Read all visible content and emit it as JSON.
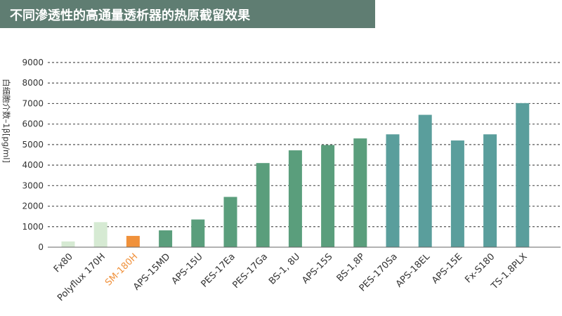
{
  "title": "不同滲透性的高通量透析器的热原截留效果",
  "chart_data": {
    "type": "bar",
    "title": "不同滲透性的高通量透析器的热原截留效果",
    "xlabel": "",
    "ylabel": "白细胞介数–1β[pg/ml]",
    "ylim": [
      0,
      9000
    ],
    "yticks": [
      0,
      1000,
      2000,
      3000,
      4000,
      5000,
      6000,
      7000,
      8000,
      9000
    ],
    "grid": true,
    "categories": [
      "Fx80",
      "Polyflux 170H",
      "SM-180H",
      "APS-15MD",
      "APS-15U",
      "PES-17Ea",
      "PES-17Ga",
      "BS-1, 8U",
      "APS-15S",
      "BS-1,8P",
      "PES-170Sa",
      "APS-18EL",
      "APS-15E",
      "Fx-S180",
      "TS-1.8PLX"
    ],
    "values": [
      280,
      1220,
      550,
      820,
      1350,
      2450,
      4100,
      4720,
      4980,
      5300,
      5500,
      6450,
      5200,
      5500,
      7020
    ],
    "bar_colors": [
      "#d6ead3",
      "#d6ead3",
      "#f0913b",
      "#5a9e7c",
      "#5a9e7c",
      "#5a9e7c",
      "#5a9e7c",
      "#5a9e7c",
      "#5a9e7c",
      "#5a9e7c",
      "#5a9e9c",
      "#5a9e9c",
      "#5a9e9c",
      "#5a9e9c",
      "#5a9e9c"
    ],
    "label_colors": [
      "#333333",
      "#333333",
      "#f0913b",
      "#333333",
      "#333333",
      "#333333",
      "#333333",
      "#333333",
      "#333333",
      "#333333",
      "#333333",
      "#333333",
      "#333333",
      "#333333",
      "#333333"
    ]
  }
}
